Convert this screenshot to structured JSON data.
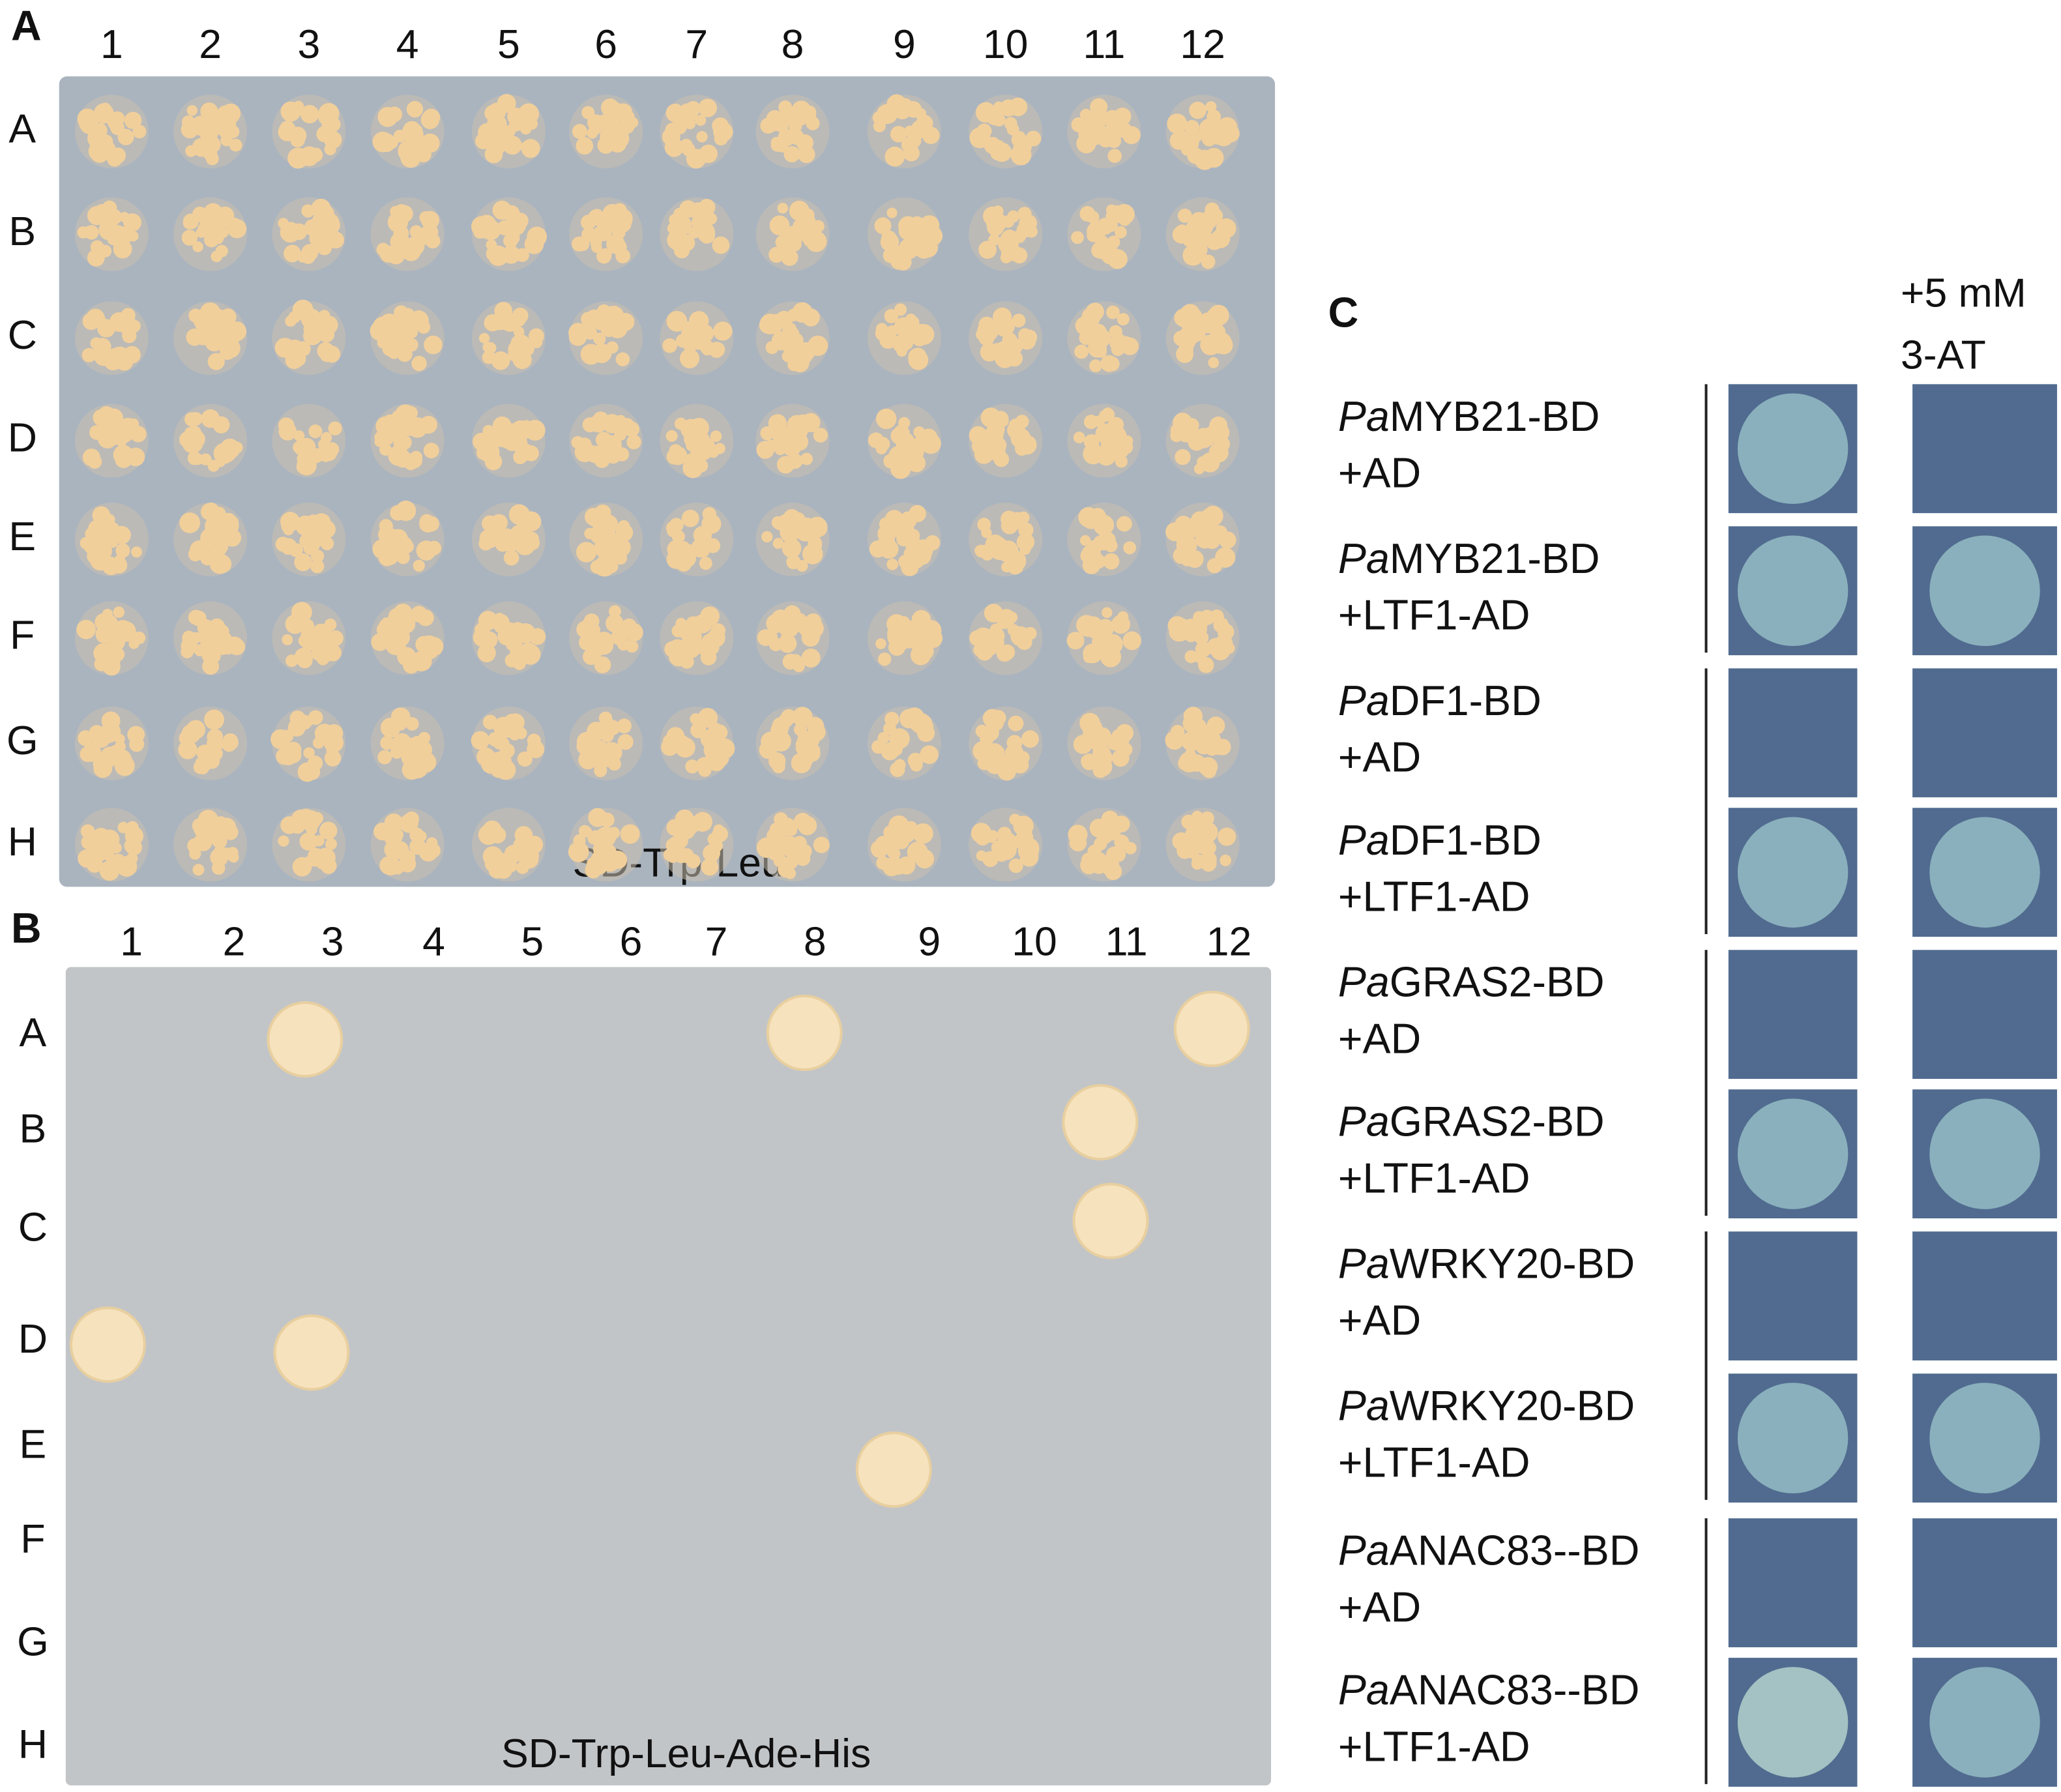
{
  "panel_a": {
    "label": "A",
    "columns": [
      "1",
      "2",
      "3",
      "4",
      "5",
      "6",
      "7",
      "8",
      "9",
      "10",
      "11",
      "12"
    ],
    "rows": [
      "A",
      "B",
      "C",
      "D",
      "E",
      "F",
      "G",
      "H"
    ],
    "medium": "SD-Trp-Leu"
  },
  "panel_b": {
    "label": "B",
    "columns": [
      "1",
      "2",
      "3",
      "4",
      "5",
      "6",
      "7",
      "8",
      "9",
      "10",
      "11",
      "12"
    ],
    "rows": [
      "A",
      "B",
      "C",
      "D",
      "E",
      "F",
      "G",
      "H"
    ],
    "medium": "SD-Trp-Leu-Ade-His"
  },
  "panel_c": {
    "label": "C",
    "header": [
      "+5 mM",
      "3-AT"
    ],
    "rows": [
      {
        "prefix": "Pa",
        "name": "MYB21-BD",
        "partner": "+AD"
      },
      {
        "prefix": "Pa",
        "name": "MYB21-BD",
        "partner": "+LTF1-AD"
      },
      {
        "prefix": "Pa",
        "name": "DF1-BD",
        "partner": "+AD"
      },
      {
        "prefix": "Pa",
        "name": "DF1-BD",
        "partner": "+LTF1-AD"
      },
      {
        "prefix": "Pa",
        "name": "GRAS2-BD",
        "partner": "+AD"
      },
      {
        "prefix": "Pa",
        "name": "GRAS2-BD",
        "partner": "+LTF1-AD"
      },
      {
        "prefix": "Pa",
        "name": "WRKY20-BD",
        "partner": "+AD"
      },
      {
        "prefix": "Pa",
        "name": "WRKY20-BD",
        "partner": "+LTF1-AD"
      },
      {
        "prefix": "Pa",
        "name": "ANAC83--BD",
        "partner": "+AD"
      },
      {
        "prefix": "Pa",
        "name": "ANAC83--BD",
        "partner": "+LTF1-AD"
      }
    ]
  }
}
